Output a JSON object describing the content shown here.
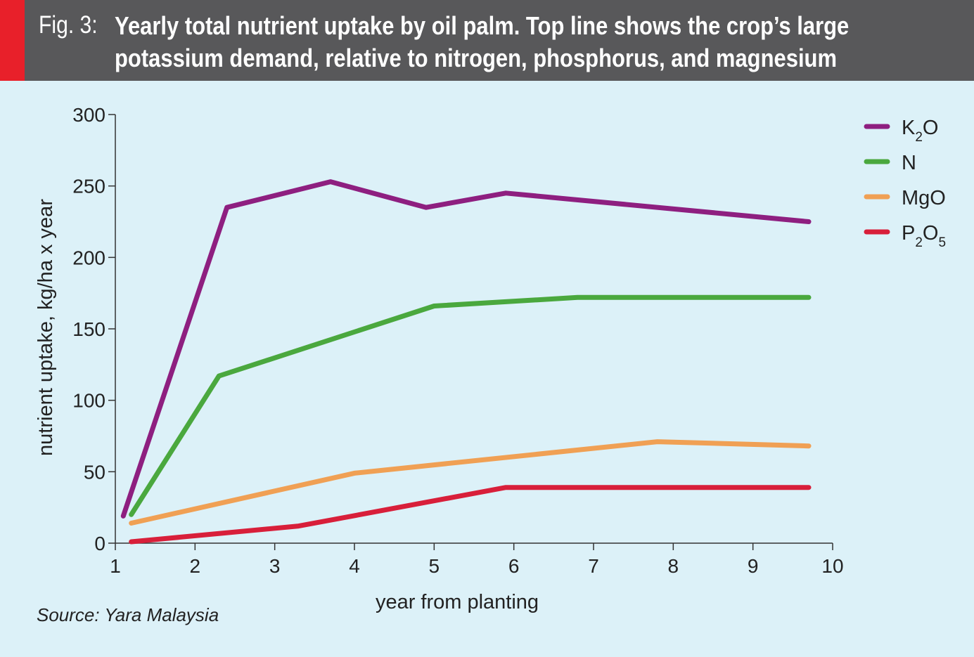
{
  "header": {
    "fig_label": "Fig. 3:",
    "title_line1": "Yearly total nutrient uptake by oil palm. Top line shows the crop’s large",
    "title_line2": "potassium demand, relative to nitrogen, phosphorus, and magnesium",
    "bg_color": "#58585a",
    "accent_color": "#e8202a"
  },
  "chart_data": {
    "type": "line",
    "xlabel": "year from planting",
    "ylabel": "nutrient uptake, kg/ha x year",
    "xlim": [
      1,
      10
    ],
    "ylim": [
      0,
      300
    ],
    "x_ticks": [
      1,
      2,
      3,
      4,
      5,
      6,
      7,
      8,
      9,
      10
    ],
    "y_ticks": [
      0,
      50,
      100,
      150,
      200,
      250,
      300
    ],
    "grid": false,
    "legend_position": "top-right",
    "series": [
      {
        "name": "K2O",
        "label_main": "K",
        "label_sub1": "2",
        "label_mid": "O",
        "label_sub2": "",
        "color": "#8e1f80",
        "points": [
          [
            1.1,
            19
          ],
          [
            2.4,
            235
          ],
          [
            3.7,
            253
          ],
          [
            4.9,
            235
          ],
          [
            5.9,
            245
          ],
          [
            9.7,
            225
          ]
        ]
      },
      {
        "name": "N",
        "label_main": "N",
        "label_sub1": "",
        "label_mid": "",
        "label_sub2": "",
        "color": "#4aa83e",
        "points": [
          [
            1.2,
            20
          ],
          [
            2.3,
            117
          ],
          [
            5.0,
            166
          ],
          [
            6.8,
            172
          ],
          [
            9.7,
            172
          ]
        ]
      },
      {
        "name": "MgO",
        "label_main": "MgO",
        "label_sub1": "",
        "label_mid": "",
        "label_sub2": "",
        "color": "#f0a054",
        "points": [
          [
            1.2,
            14
          ],
          [
            4.0,
            49
          ],
          [
            7.8,
            71
          ],
          [
            9.7,
            68
          ]
        ]
      },
      {
        "name": "P2O5",
        "label_main": "P",
        "label_sub1": "2",
        "label_mid": "O",
        "label_sub2": "5",
        "color": "#d81f3a",
        "points": [
          [
            1.2,
            1
          ],
          [
            3.3,
            12
          ],
          [
            5.9,
            39
          ],
          [
            9.7,
            39
          ]
        ]
      }
    ]
  },
  "source": "Source: Yara Malaysia"
}
